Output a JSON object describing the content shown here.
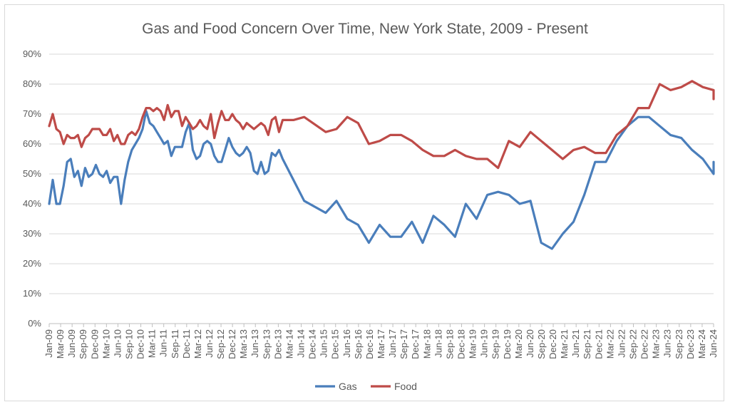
{
  "chart_data": {
    "type": "line",
    "title": "Gas and Food Concern Over Time, New York State, 2009 - Present",
    "xlabel": "",
    "ylabel": "",
    "ylim": [
      0,
      0.9
    ],
    "y_ticks": [
      "0%",
      "10%",
      "20%",
      "30%",
      "40%",
      "50%",
      "60%",
      "70%",
      "80%",
      "90%"
    ],
    "x_start": "2009-01",
    "x_end": "2024-06",
    "x_ticks": [
      "Jan-09",
      "Mar-09",
      "Jun-09",
      "Sep-09",
      "Dec-09",
      "Mar-10",
      "Jun-10",
      "Sep-10",
      "Dec-10",
      "Mar-11",
      "Jun-11",
      "Sep-11",
      "Dec-11",
      "Mar-12",
      "Jun-12",
      "Sep-12",
      "Dec-12",
      "Mar-13",
      "Jun-13",
      "Sep-13",
      "Dec-13",
      "Mar-14",
      "Jun-14",
      "Dec-14",
      "Jun-15",
      "Dec-15",
      "Jun-16",
      "Sep-16",
      "Dec-16",
      "Mar-17",
      "Jun-17",
      "Sep-17",
      "Dec-17",
      "Mar-18",
      "Jun-18",
      "Sep-18",
      "Dec-18",
      "Mar-19",
      "Jun-19",
      "Sep-19",
      "Dec-19",
      "Mar-20",
      "Jun-20",
      "Sep-20",
      "Dec-20",
      "Mar-21",
      "Jun-21",
      "Sep-21",
      "Dec-21",
      "Mar-22",
      "Jun-22",
      "Sep-22",
      "Dec-22",
      "Mar-23",
      "Jun-23",
      "Sep-23",
      "Dec-23",
      "Mar-24",
      "Jun-24"
    ],
    "grid": true,
    "legend_position": "bottom",
    "series": [
      {
        "name": "Gas",
        "color": "#4a7ebb",
        "points": [
          [
            "2009-01",
            0.4
          ],
          [
            "2009-02",
            0.48
          ],
          [
            "2009-03",
            0.4
          ],
          [
            "2009-04",
            0.4
          ],
          [
            "2009-05",
            0.46
          ],
          [
            "2009-06",
            0.54
          ],
          [
            "2009-07",
            0.55
          ],
          [
            "2009-08",
            0.49
          ],
          [
            "2009-09",
            0.51
          ],
          [
            "2009-10",
            0.46
          ],
          [
            "2009-11",
            0.52
          ],
          [
            "2009-12",
            0.49
          ],
          [
            "2010-01",
            0.5
          ],
          [
            "2010-02",
            0.53
          ],
          [
            "2010-03",
            0.5
          ],
          [
            "2010-04",
            0.49
          ],
          [
            "2010-05",
            0.51
          ],
          [
            "2010-06",
            0.47
          ],
          [
            "2010-07",
            0.49
          ],
          [
            "2010-08",
            0.49
          ],
          [
            "2010-09",
            0.4
          ],
          [
            "2010-10",
            0.48
          ],
          [
            "2010-11",
            0.54
          ],
          [
            "2010-12",
            0.58
          ],
          [
            "2011-01",
            0.6
          ],
          [
            "2011-02",
            0.62
          ],
          [
            "2011-03",
            0.65
          ],
          [
            "2011-04",
            0.71
          ],
          [
            "2011-05",
            0.67
          ],
          [
            "2011-06",
            0.66
          ],
          [
            "2011-07",
            0.64
          ],
          [
            "2011-08",
            0.62
          ],
          [
            "2011-09",
            0.6
          ],
          [
            "2011-10",
            0.61
          ],
          [
            "2011-11",
            0.56
          ],
          [
            "2011-12",
            0.59
          ],
          [
            "2012-01",
            0.59
          ],
          [
            "2012-02",
            0.59
          ],
          [
            "2012-03",
            0.64
          ],
          [
            "2012-04",
            0.67
          ],
          [
            "2012-05",
            0.58
          ],
          [
            "2012-06",
            0.55
          ],
          [
            "2012-07",
            0.56
          ],
          [
            "2012-08",
            0.6
          ],
          [
            "2012-09",
            0.61
          ],
          [
            "2012-10",
            0.6
          ],
          [
            "2012-11",
            0.56
          ],
          [
            "2012-12",
            0.54
          ],
          [
            "2013-01",
            0.54
          ],
          [
            "2013-02",
            0.58
          ],
          [
            "2013-03",
            0.62
          ],
          [
            "2013-04",
            0.59
          ],
          [
            "2013-05",
            0.57
          ],
          [
            "2013-06",
            0.56
          ],
          [
            "2013-07",
            0.57
          ],
          [
            "2013-08",
            0.59
          ],
          [
            "2013-09",
            0.57
          ],
          [
            "2013-10",
            0.51
          ],
          [
            "2013-11",
            0.5
          ],
          [
            "2013-12",
            0.54
          ],
          [
            "2014-01",
            0.5
          ],
          [
            "2014-02",
            0.51
          ],
          [
            "2014-03",
            0.57
          ],
          [
            "2014-04",
            0.56
          ],
          [
            "2014-05",
            0.58
          ],
          [
            "2014-06",
            0.55
          ],
          [
            "2014-09",
            0.48
          ],
          [
            "2014-12",
            0.41
          ],
          [
            "2015-06",
            0.37
          ],
          [
            "2015-09",
            0.41
          ],
          [
            "2015-12",
            0.35
          ],
          [
            "2016-03",
            0.33
          ],
          [
            "2016-06",
            0.27
          ],
          [
            "2016-09",
            0.33
          ],
          [
            "2016-12",
            0.29
          ],
          [
            "2017-03",
            0.29
          ],
          [
            "2017-06",
            0.34
          ],
          [
            "2017-09",
            0.27
          ],
          [
            "2017-12",
            0.36
          ],
          [
            "2018-03",
            0.33
          ],
          [
            "2018-06",
            0.29
          ],
          [
            "2018-09",
            0.4
          ],
          [
            "2018-12",
            0.35
          ],
          [
            "2019-03",
            0.43
          ],
          [
            "2019-06",
            0.44
          ],
          [
            "2019-09",
            0.43
          ],
          [
            "2019-12",
            0.4
          ],
          [
            "2020-03",
            0.41
          ],
          [
            "2020-06",
            0.27
          ],
          [
            "2020-09",
            0.25
          ],
          [
            "2020-12",
            0.3
          ],
          [
            "2021-03",
            0.34
          ],
          [
            "2021-06",
            0.43
          ],
          [
            "2021-09",
            0.54
          ],
          [
            "2021-12",
            0.54
          ],
          [
            "2022-03",
            0.61
          ],
          [
            "2022-06",
            0.66
          ],
          [
            "2022-09",
            0.69
          ],
          [
            "2022-12",
            0.69
          ],
          [
            "2023-03",
            0.66
          ],
          [
            "2023-06",
            0.63
          ],
          [
            "2023-09",
            0.62
          ],
          [
            "2023-12",
            0.58
          ],
          [
            "2024-03",
            0.55
          ],
          [
            "2024-06",
            0.5
          ],
          [
            "2024-09",
            0.54
          ]
        ]
      },
      {
        "name": "Food",
        "color": "#be4b48",
        "points": [
          [
            "2009-01",
            0.66
          ],
          [
            "2009-02",
            0.7
          ],
          [
            "2009-03",
            0.65
          ],
          [
            "2009-04",
            0.64
          ],
          [
            "2009-05",
            0.6
          ],
          [
            "2009-06",
            0.63
          ],
          [
            "2009-07",
            0.62
          ],
          [
            "2009-08",
            0.62
          ],
          [
            "2009-09",
            0.63
          ],
          [
            "2009-10",
            0.59
          ],
          [
            "2009-11",
            0.62
          ],
          [
            "2009-12",
            0.63
          ],
          [
            "2010-01",
            0.65
          ],
          [
            "2010-02",
            0.65
          ],
          [
            "2010-03",
            0.65
          ],
          [
            "2010-04",
            0.63
          ],
          [
            "2010-05",
            0.63
          ],
          [
            "2010-06",
            0.65
          ],
          [
            "2010-07",
            0.61
          ],
          [
            "2010-08",
            0.63
          ],
          [
            "2010-09",
            0.6
          ],
          [
            "2010-10",
            0.6
          ],
          [
            "2010-11",
            0.63
          ],
          [
            "2010-12",
            0.64
          ],
          [
            "2011-01",
            0.63
          ],
          [
            "2011-02",
            0.65
          ],
          [
            "2011-03",
            0.69
          ],
          [
            "2011-04",
            0.72
          ],
          [
            "2011-05",
            0.72
          ],
          [
            "2011-06",
            0.71
          ],
          [
            "2011-07",
            0.72
          ],
          [
            "2011-08",
            0.71
          ],
          [
            "2011-09",
            0.68
          ],
          [
            "2011-10",
            0.73
          ],
          [
            "2011-11",
            0.69
          ],
          [
            "2011-12",
            0.71
          ],
          [
            "2012-01",
            0.71
          ],
          [
            "2012-02",
            0.66
          ],
          [
            "2012-03",
            0.69
          ],
          [
            "2012-04",
            0.67
          ],
          [
            "2012-05",
            0.65
          ],
          [
            "2012-06",
            0.66
          ],
          [
            "2012-07",
            0.68
          ],
          [
            "2012-08",
            0.66
          ],
          [
            "2012-09",
            0.65
          ],
          [
            "2012-10",
            0.7
          ],
          [
            "2012-11",
            0.62
          ],
          [
            "2012-12",
            0.67
          ],
          [
            "2013-01",
            0.71
          ],
          [
            "2013-02",
            0.68
          ],
          [
            "2013-03",
            0.68
          ],
          [
            "2013-04",
            0.7
          ],
          [
            "2013-05",
            0.68
          ],
          [
            "2013-06",
            0.67
          ],
          [
            "2013-07",
            0.65
          ],
          [
            "2013-08",
            0.67
          ],
          [
            "2013-09",
            0.66
          ],
          [
            "2013-10",
            0.65
          ],
          [
            "2013-11",
            0.66
          ],
          [
            "2013-12",
            0.67
          ],
          [
            "2014-01",
            0.66
          ],
          [
            "2014-02",
            0.63
          ],
          [
            "2014-03",
            0.68
          ],
          [
            "2014-04",
            0.69
          ],
          [
            "2014-05",
            0.64
          ],
          [
            "2014-06",
            0.68
          ],
          [
            "2014-09",
            0.68
          ],
          [
            "2014-12",
            0.69
          ],
          [
            "2015-06",
            0.64
          ],
          [
            "2015-09",
            0.65
          ],
          [
            "2015-12",
            0.69
          ],
          [
            "2016-03",
            0.67
          ],
          [
            "2016-06",
            0.6
          ],
          [
            "2016-09",
            0.61
          ],
          [
            "2016-12",
            0.63
          ],
          [
            "2017-03",
            0.63
          ],
          [
            "2017-06",
            0.61
          ],
          [
            "2017-09",
            0.58
          ],
          [
            "2017-12",
            0.56
          ],
          [
            "2018-03",
            0.56
          ],
          [
            "2018-06",
            0.58
          ],
          [
            "2018-09",
            0.56
          ],
          [
            "2018-12",
            0.55
          ],
          [
            "2019-03",
            0.55
          ],
          [
            "2019-06",
            0.52
          ],
          [
            "2019-09",
            0.61
          ],
          [
            "2019-12",
            0.59
          ],
          [
            "2020-03",
            0.64
          ],
          [
            "2020-06",
            0.61
          ],
          [
            "2020-09",
            0.58
          ],
          [
            "2020-12",
            0.55
          ],
          [
            "2021-03",
            0.58
          ],
          [
            "2021-06",
            0.59
          ],
          [
            "2021-09",
            0.57
          ],
          [
            "2021-12",
            0.57
          ],
          [
            "2022-03",
            0.63
          ],
          [
            "2022-06",
            0.66
          ],
          [
            "2022-09",
            0.72
          ],
          [
            "2022-12",
            0.72
          ],
          [
            "2023-03",
            0.8
          ],
          [
            "2023-06",
            0.78
          ],
          [
            "2023-09",
            0.79
          ],
          [
            "2023-12",
            0.81
          ],
          [
            "2024-03",
            0.79
          ],
          [
            "2024-06",
            0.78
          ],
          [
            "2024-09",
            0.75
          ],
          [
            "2024-12",
            0.77
          ],
          [
            "2025-03",
            0.75
          ]
        ]
      }
    ]
  }
}
